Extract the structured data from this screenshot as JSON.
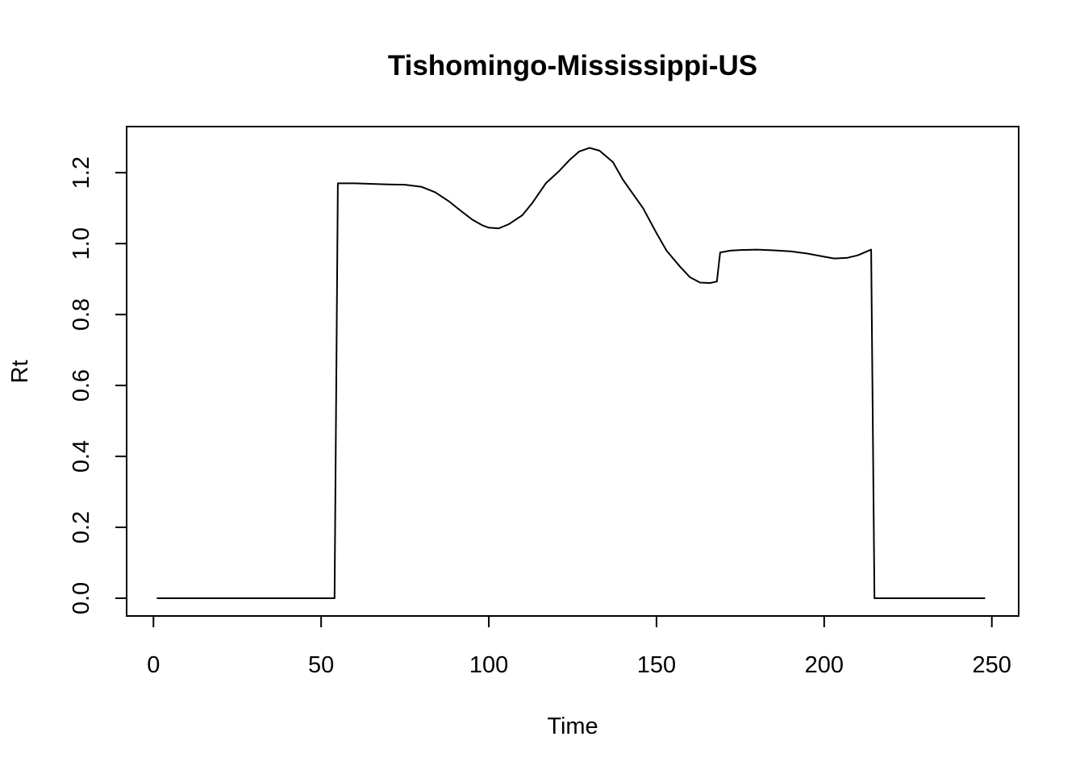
{
  "chart_data": {
    "type": "line",
    "title": "Tishomingo-Mississippi-US",
    "xlabel": "Time",
    "ylabel": "Rt",
    "xlim": [
      -8,
      258
    ],
    "ylim": [
      -0.05,
      1.33
    ],
    "grid": false,
    "legend": "none",
    "line_color": "#000000",
    "x_ticks": [
      {
        "value": 0,
        "label": "0"
      },
      {
        "value": 50,
        "label": "50"
      },
      {
        "value": 100,
        "label": "100"
      },
      {
        "value": 150,
        "label": "150"
      },
      {
        "value": 200,
        "label": "200"
      },
      {
        "value": 250,
        "label": "250"
      }
    ],
    "y_ticks": [
      {
        "value": 0.0,
        "label": "0.0"
      },
      {
        "value": 0.2,
        "label": "0.2"
      },
      {
        "value": 0.4,
        "label": "0.4"
      },
      {
        "value": 0.6,
        "label": "0.6"
      },
      {
        "value": 0.8,
        "label": "0.8"
      },
      {
        "value": 1.0,
        "label": "1.0"
      },
      {
        "value": 1.2,
        "label": "1.2"
      }
    ],
    "series": [
      {
        "x": [
          1,
          54,
          55,
          60,
          70,
          75,
          80,
          84,
          88,
          92,
          95,
          98,
          100,
          103,
          106,
          110,
          113,
          117,
          121,
          124,
          127,
          130,
          133,
          137,
          140,
          143,
          146,
          150,
          153,
          157,
          160,
          163,
          166,
          168,
          169,
          172,
          175,
          180,
          185,
          190,
          195,
          200,
          203,
          207,
          210,
          214,
          215,
          220,
          230,
          240,
          248
        ],
        "y": [
          0.0,
          0.0,
          1.17,
          1.17,
          1.167,
          1.166,
          1.16,
          1.145,
          1.12,
          1.09,
          1.068,
          1.052,
          1.045,
          1.043,
          1.055,
          1.08,
          1.115,
          1.17,
          1.205,
          1.235,
          1.26,
          1.27,
          1.262,
          1.23,
          1.18,
          1.14,
          1.1,
          1.03,
          0.98,
          0.935,
          0.905,
          0.89,
          0.889,
          0.893,
          0.975,
          0.98,
          0.982,
          0.983,
          0.981,
          0.978,
          0.972,
          0.963,
          0.958,
          0.96,
          0.967,
          0.983,
          0.0,
          0.0,
          0.0,
          0.0,
          0.0
        ]
      }
    ]
  }
}
